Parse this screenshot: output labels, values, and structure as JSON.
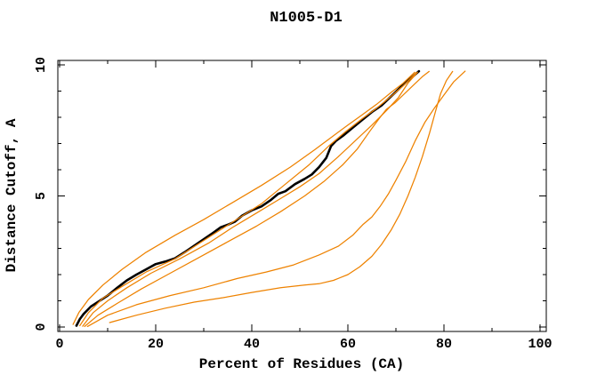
{
  "title": "N1005-D1",
  "axes": {
    "x_label": "Percent of Residues (CA)",
    "y_label": "Distance Cutoff, A",
    "x_tick_labels": [
      "0",
      "20",
      "40",
      "60",
      "80",
      "100"
    ],
    "y_tick_labels": [
      "0",
      "5",
      "10"
    ]
  },
  "colors": {
    "background": "#ffffff",
    "frame": "#000000",
    "main_curve": "#000000",
    "model_curve": "#ee8200",
    "text": "#000000"
  },
  "chart_data": {
    "type": "line",
    "title": "N1005-D1",
    "xlabel": "Percent of Residues (CA)",
    "ylabel": "Distance Cutoff, A",
    "xlim": [
      0,
      101.5
    ],
    "ylim": [
      -0.2,
      10.2
    ],
    "grid": false,
    "legend": "none",
    "x_major_ticks": [
      0,
      20,
      40,
      60,
      80,
      100
    ],
    "x_minor_ticks": [
      10,
      30,
      50,
      70,
      90
    ],
    "y_major_ticks": [
      0,
      5,
      10
    ],
    "y_minor_ticks": [
      1,
      2,
      3,
      4,
      6,
      7,
      8,
      9
    ],
    "series": [
      {
        "name": "main-curve-black",
        "color_key": "main_curve",
        "width": 2.6,
        "points": [
          [
            3.5,
            0.05
          ],
          [
            4.2,
            0.3
          ],
          [
            5,
            0.5
          ],
          [
            6.5,
            0.78
          ],
          [
            8.5,
            1.02
          ],
          [
            10,
            1.2
          ],
          [
            12,
            1.5
          ],
          [
            14,
            1.78
          ],
          [
            16,
            2.0
          ],
          [
            18,
            2.2
          ],
          [
            20,
            2.4
          ],
          [
            22,
            2.5
          ],
          [
            24,
            2.62
          ],
          [
            26,
            2.85
          ],
          [
            28,
            3.1
          ],
          [
            30,
            3.35
          ],
          [
            32,
            3.6
          ],
          [
            33.5,
            3.8
          ],
          [
            35,
            3.9
          ],
          [
            36.5,
            4.02
          ],
          [
            38,
            4.25
          ],
          [
            40,
            4.45
          ],
          [
            42,
            4.6
          ],
          [
            44,
            4.85
          ],
          [
            45.5,
            5.08
          ],
          [
            47,
            5.18
          ],
          [
            49,
            5.45
          ],
          [
            51,
            5.65
          ],
          [
            52.5,
            5.82
          ],
          [
            54,
            6.1
          ],
          [
            55.5,
            6.45
          ],
          [
            56.5,
            6.9
          ],
          [
            57.5,
            7.1
          ],
          [
            59,
            7.3
          ],
          [
            61,
            7.6
          ],
          [
            63,
            7.9
          ],
          [
            65,
            8.2
          ],
          [
            67,
            8.45
          ],
          [
            69,
            8.8
          ],
          [
            71,
            9.15
          ],
          [
            72.5,
            9.4
          ],
          [
            73.8,
            9.6
          ],
          [
            74.8,
            9.76
          ]
        ]
      },
      {
        "name": "orange-curve-1",
        "color_key": "model_curve",
        "width": 1.25,
        "points": [
          [
            2.8,
            0.1
          ],
          [
            4,
            0.55
          ],
          [
            6,
            1.05
          ],
          [
            9,
            1.6
          ],
          [
            13,
            2.2
          ],
          [
            18,
            2.85
          ],
          [
            24,
            3.5
          ],
          [
            30,
            4.1
          ],
          [
            36,
            4.75
          ],
          [
            42,
            5.4
          ],
          [
            48,
            6.1
          ],
          [
            53,
            6.75
          ],
          [
            57,
            7.3
          ],
          [
            60,
            7.7
          ],
          [
            63,
            8.1
          ],
          [
            66,
            8.5
          ],
          [
            69,
            8.95
          ],
          [
            71.5,
            9.3
          ],
          [
            73.9,
            9.72
          ]
        ]
      },
      {
        "name": "orange-curve-2",
        "color_key": "model_curve",
        "width": 1.25,
        "points": [
          [
            4.2,
            0.05
          ],
          [
            6,
            0.55
          ],
          [
            9,
            1.1
          ],
          [
            13,
            1.55
          ],
          [
            18,
            2.1
          ],
          [
            24,
            2.6
          ],
          [
            30,
            3.3
          ],
          [
            36,
            4.0
          ],
          [
            42,
            4.7
          ],
          [
            47,
            5.45
          ],
          [
            52,
            6.2
          ],
          [
            56,
            6.9
          ],
          [
            59.5,
            7.45
          ],
          [
            63,
            7.95
          ],
          [
            66,
            8.35
          ],
          [
            69,
            8.8
          ],
          [
            71.5,
            9.2
          ],
          [
            74.2,
            9.7
          ]
        ]
      },
      {
        "name": "orange-curve-3",
        "color_key": "model_curve",
        "width": 1.25,
        "points": [
          [
            4.8,
            0.03
          ],
          [
            7,
            0.55
          ],
          [
            10,
            1.0
          ],
          [
            14,
            1.5
          ],
          [
            19,
            2.05
          ],
          [
            25,
            2.6
          ],
          [
            31,
            3.2
          ],
          [
            36,
            3.8
          ],
          [
            41,
            4.35
          ],
          [
            46,
            4.9
          ],
          [
            50,
            5.35
          ],
          [
            54,
            5.85
          ],
          [
            58,
            6.5
          ],
          [
            61.5,
            7.1
          ],
          [
            65,
            7.7
          ],
          [
            68,
            8.25
          ],
          [
            70.5,
            8.75
          ],
          [
            72.5,
            9.3
          ],
          [
            74.5,
            9.72
          ]
        ]
      },
      {
        "name": "orange-curve-4",
        "color_key": "model_curve",
        "width": 1.25,
        "points": [
          [
            5.2,
            0.02
          ],
          [
            8,
            0.45
          ],
          [
            12,
            0.9
          ],
          [
            17,
            1.45
          ],
          [
            23,
            2.05
          ],
          [
            29,
            2.65
          ],
          [
            35,
            3.25
          ],
          [
            41,
            3.85
          ],
          [
            46,
            4.4
          ],
          [
            51,
            5.0
          ],
          [
            55,
            5.55
          ],
          [
            59,
            6.2
          ],
          [
            62,
            6.8
          ],
          [
            64.5,
            7.45
          ],
          [
            66.5,
            7.95
          ],
          [
            68,
            8.3
          ],
          [
            69.8,
            8.55
          ],
          [
            71.5,
            8.85
          ],
          [
            73.5,
            9.2
          ],
          [
            75.5,
            9.55
          ],
          [
            76.9,
            9.75
          ]
        ]
      },
      {
        "name": "orange-curve-5",
        "color_key": "model_curve",
        "width": 1.25,
        "points": [
          [
            5.8,
            0.02
          ],
          [
            10,
            0.45
          ],
          [
            16,
            0.85
          ],
          [
            23,
            1.2
          ],
          [
            30,
            1.5
          ],
          [
            37,
            1.85
          ],
          [
            43,
            2.1
          ],
          [
            48.7,
            2.37
          ],
          [
            54,
            2.75
          ],
          [
            58,
            3.08
          ],
          [
            61,
            3.5
          ],
          [
            63.1,
            3.9
          ],
          [
            65,
            4.2
          ],
          [
            66.7,
            4.6
          ],
          [
            68.5,
            5.1
          ],
          [
            70,
            5.6
          ],
          [
            72,
            6.3
          ],
          [
            74,
            7.1
          ],
          [
            76,
            7.8
          ],
          [
            78,
            8.35
          ],
          [
            80,
            8.85
          ],
          [
            82,
            9.35
          ],
          [
            84.4,
            9.76
          ]
        ]
      },
      {
        "name": "orange-curve-6",
        "color_key": "model_curve",
        "width": 1.25,
        "points": [
          [
            10.4,
            0.17
          ],
          [
            16,
            0.45
          ],
          [
            22,
            0.72
          ],
          [
            28,
            0.95
          ],
          [
            34,
            1.12
          ],
          [
            40,
            1.32
          ],
          [
            46,
            1.5
          ],
          [
            51,
            1.6
          ],
          [
            54,
            1.65
          ],
          [
            57,
            1.78
          ],
          [
            60,
            2.0
          ],
          [
            62.5,
            2.3
          ],
          [
            65,
            2.7
          ],
          [
            67,
            3.15
          ],
          [
            69,
            3.7
          ],
          [
            70.8,
            4.3
          ],
          [
            72.5,
            5.0
          ],
          [
            74,
            5.7
          ],
          [
            75.5,
            6.5
          ],
          [
            77,
            7.4
          ],
          [
            78.2,
            8.2
          ],
          [
            79.3,
            8.9
          ],
          [
            80.5,
            9.4
          ],
          [
            81.8,
            9.75
          ]
        ]
      }
    ]
  }
}
